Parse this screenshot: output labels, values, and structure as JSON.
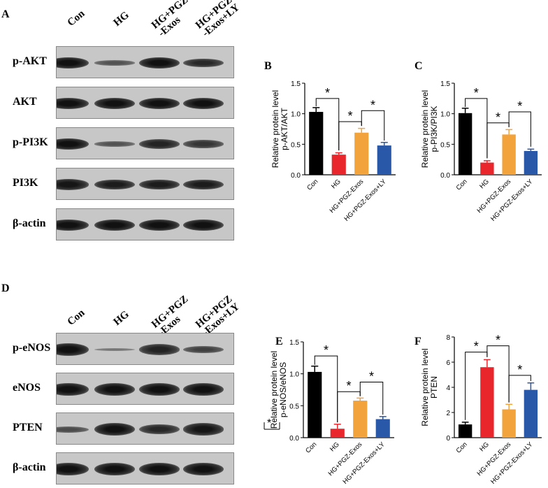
{
  "panels": {
    "A": "A",
    "B": "B",
    "C": "C",
    "D": "D",
    "E": "E",
    "F": "F"
  },
  "blots_top": {
    "lanes": [
      "Con",
      "HG",
      "HG+PGZ\n-Exos",
      "HG+PGZ\n-Exos+LY"
    ],
    "rows": [
      {
        "label": "p-AKT",
        "intensity": [
          1.0,
          0.45,
          1.0,
          0.8
        ]
      },
      {
        "label": "AKT",
        "intensity": [
          1.0,
          1.0,
          1.0,
          1.0
        ]
      },
      {
        "label": "p-PI3K",
        "intensity": [
          1.0,
          0.45,
          0.85,
          0.7
        ]
      },
      {
        "label": "PI3K",
        "intensity": [
          0.95,
          0.9,
          0.9,
          0.9
        ]
      },
      {
        "label": "β-actin",
        "intensity": [
          1.0,
          1.0,
          1.0,
          1.0
        ]
      }
    ]
  },
  "blots_bottom": {
    "lanes": [
      "Con",
      "HG",
      "HG+PGZ\n-Exos",
      "HG+PGZ\n-Exos+LY"
    ],
    "rows": [
      {
        "label": "p-eNOS",
        "intensity": [
          1.0,
          0.15,
          0.85,
          0.6
        ]
      },
      {
        "label": "eNOS",
        "intensity": [
          1.0,
          1.0,
          1.0,
          1.0
        ]
      },
      {
        "label": "PTEN",
        "intensity": [
          0.5,
          1.0,
          0.8,
          0.95
        ]
      },
      {
        "label": "β-actin",
        "intensity": [
          1.0,
          1.0,
          1.0,
          1.0
        ]
      }
    ]
  },
  "chart_data": [
    {
      "panel": "B",
      "type": "bar",
      "categories": [
        "Con",
        "HG",
        "HG+PGZ-Exos",
        "HG+PGZ-Exos+LY"
      ],
      "values": [
        1.03,
        0.33,
        0.69,
        0.48
      ],
      "errors": [
        0.07,
        0.03,
        0.07,
        0.05
      ],
      "colors": [
        "#000000",
        "#e8262c",
        "#f3a33c",
        "#2a58a8"
      ],
      "ylabel": "Relative protein level\np-AKT/AKT",
      "ylim": [
        0,
        1.5
      ],
      "yticks": [
        "0.0",
        "0.5",
        "1.0",
        "1.5"
      ],
      "significance": [
        "*",
        "*",
        "*"
      ]
    },
    {
      "panel": "C",
      "type": "bar",
      "categories": [
        "Con",
        "HG",
        "HG+PGZ-Exos",
        "HG+PGZ-Exos+LY"
      ],
      "values": [
        1.01,
        0.2,
        0.66,
        0.39
      ],
      "errors": [
        0.08,
        0.03,
        0.08,
        0.03
      ],
      "colors": [
        "#000000",
        "#e8262c",
        "#f3a33c",
        "#2a58a8"
      ],
      "ylabel": "Relative protein level\np-PI3K/PI3K",
      "ylim": [
        0,
        1.5
      ],
      "yticks": [
        "0.0",
        "0.5",
        "1.0",
        "1.5"
      ],
      "significance": [
        "*",
        "*",
        "*"
      ]
    },
    {
      "panel": "E",
      "type": "bar",
      "categories": [
        "Con",
        "HG",
        "HG+PGZ-Exos",
        "HG+PGZ-Exos+LY"
      ],
      "values": [
        1.03,
        0.14,
        0.58,
        0.29
      ],
      "errors": [
        0.09,
        0.07,
        0.04,
        0.04
      ],
      "colors": [
        "#000000",
        "#e8262c",
        "#f3a33c",
        "#2a58a8"
      ],
      "ylabel": "Relative protein level\np-eNOS/eNOS",
      "ylim": [
        0,
        1.5
      ],
      "yticks": [
        "0.0",
        "0.5",
        "1.0",
        "1.5"
      ],
      "significance": [
        "*",
        "*",
        "*"
      ]
    },
    {
      "panel": "F",
      "type": "bar",
      "categories": [
        "Con",
        "HG",
        "HG+PGZ-Exos",
        "HG+PGZ-Exos+LY"
      ],
      "values": [
        1.05,
        5.6,
        2.25,
        3.8
      ],
      "errors": [
        0.18,
        0.6,
        0.4,
        0.55
      ],
      "colors": [
        "#000000",
        "#e8262c",
        "#f3a33c",
        "#2a58a8"
      ],
      "ylabel": "Relative protein level\nPTEN",
      "ylim": [
        0,
        8
      ],
      "yticks": [
        "0",
        "2",
        "4",
        "6",
        "8"
      ],
      "significance": [
        "*",
        "*",
        "*"
      ]
    }
  ],
  "stray_mark": "*"
}
